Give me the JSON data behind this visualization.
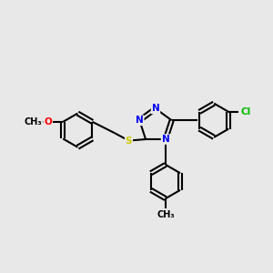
{
  "background_color": "#e8e8e8",
  "bond_color": "#000000",
  "bond_width": 1.5,
  "atom_colors": {
    "N": "#0000ee",
    "S": "#cccc00",
    "O": "#ff0000",
    "Cl": "#00bb00",
    "C": "#000000"
  },
  "font_size": 7.5,
  "fig_size": [
    3.0,
    3.0
  ],
  "dpi": 100
}
